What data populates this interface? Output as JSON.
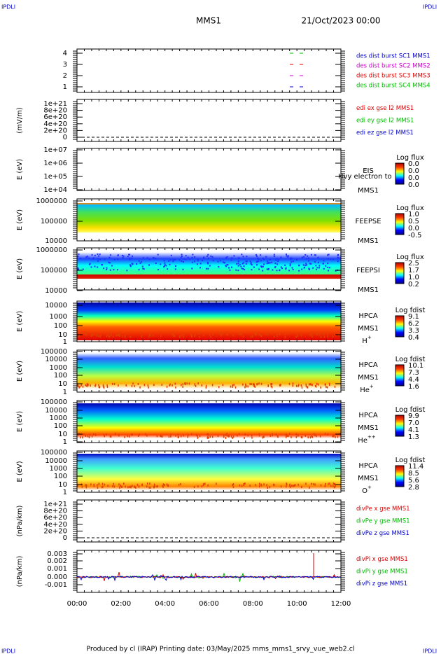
{
  "header": {
    "corner": "IPDLI",
    "title": "MMS1",
    "date": "21/Oct/2023 00:00"
  },
  "footer": {
    "text": "Produced by cl (IRAP)   Printing date: 03/May/2025   mms_mms1_srvy_vue_web2.cl",
    "corner": "IPDLI"
  },
  "xticks": [
    "00:00",
    "02:00",
    "04:00",
    "06:00",
    "08:00",
    "10:00",
    "12:00"
  ],
  "panels": [
    {
      "ylabel": "",
      "yticks": [
        "4",
        "3",
        "2",
        "1"
      ],
      "legend": [
        {
          "text": "des dist burst SC1 MMS1",
          "color": "#0000cc"
        },
        {
          "text": "des dist burst SC2 MMS2",
          "color": "#cc00cc"
        },
        {
          "text": "des dist burst SC3 MMS3",
          "color": "#dd0000"
        },
        {
          "text": "des dist burst SC4 MMS4",
          "color": "#00bb00"
        }
      ]
    },
    {
      "ylabel": "(mV/m)",
      "yticks": [
        "1e+21",
        "8e+20",
        "6e+20",
        "4e+20",
        "2e+20",
        "0"
      ],
      "legend": [
        {
          "text": "edi ex gse l2 MMS1",
          "color": "#dd0000"
        },
        {
          "text": "edi ey gse l2 MMS1",
          "color": "#00bb00"
        },
        {
          "text": "edi ez gse l2 MMS1",
          "color": "#0000cc"
        }
      ]
    },
    {
      "ylabel": "E (eV)",
      "yticks": [
        "1e+07",
        "1e+06",
        "1e+05",
        "1e+04"
      ],
      "side": [
        "EIS",
        "MMS1"
      ],
      "note": "Hvy electron to",
      "cbar": {
        "title": "Log flux",
        "ticks": [
          "0.0",
          "0.0",
          "0.0",
          "0.0"
        ]
      }
    },
    {
      "ylabel": "E (eV)",
      "yticks": [
        "1000000",
        "100000",
        "10000"
      ],
      "side": [
        "FEEPSE",
        "MMS1"
      ],
      "cbar": {
        "title": "Log flux",
        "ticks": [
          "1.0",
          "0.5",
          "0.0",
          "-0.5"
        ]
      }
    },
    {
      "ylabel": "E (eV)",
      "yticks": [
        "1000000",
        "100000",
        "10000"
      ],
      "side": [
        "FEEPSI",
        "MMS1"
      ],
      "cbar": {
        "title": "Log flux",
        "ticks": [
          "2.5",
          "1.7",
          "1.0",
          "0.2"
        ]
      }
    },
    {
      "ylabel": "E (eV)",
      "yticks": [
        "10000",
        "1000",
        "100",
        "10",
        "1"
      ],
      "side": [
        "HPCA",
        "MMS1"
      ],
      "species": {
        "base": "H",
        "sup": "+"
      },
      "cbar": {
        "title": "Log fdist",
        "ticks": [
          "9.1",
          "6.2",
          "3.3",
          "0.4"
        ]
      }
    },
    {
      "ylabel": "E (eV)",
      "yticks": [
        "100000",
        "10000",
        "1000",
        "100",
        "10",
        "1"
      ],
      "side": [
        "HPCA",
        "MMS1"
      ],
      "species": {
        "base": "He",
        "sup": "+"
      },
      "cbar": {
        "title": "Log fdist",
        "ticks": [
          "10.1",
          "7.3",
          "4.4",
          "1.6"
        ]
      }
    },
    {
      "ylabel": "E (eV)",
      "yticks": [
        "100000",
        "10000",
        "1000",
        "100",
        "10",
        "1"
      ],
      "side": [
        "HPCA",
        "MMS1"
      ],
      "species": {
        "base": "He",
        "sup": "++"
      },
      "cbar": {
        "title": "Log fdist",
        "ticks": [
          "9.9",
          "7.0",
          "4.1",
          "1.3"
        ]
      }
    },
    {
      "ylabel": "E (eV)",
      "yticks": [
        "100000",
        "10000",
        "1000",
        "100",
        "10",
        "1"
      ],
      "side": [
        "HPCA",
        "MMS1"
      ],
      "species": {
        "base": "O",
        "sup": "+"
      },
      "cbar": {
        "title": "Log fdist",
        "ticks": [
          "11.4",
          "8.5",
          "5.6",
          "2.8"
        ]
      }
    },
    {
      "ylabel": "(nPa/km)",
      "yticks": [
        "1e+21",
        "8e+20",
        "6e+20",
        "4e+20",
        "2e+20",
        "0"
      ],
      "legend": [
        {
          "text": "divPe x gse MMS1",
          "color": "#dd0000"
        },
        {
          "text": "divPe y gse MMS1",
          "color": "#00bb00"
        },
        {
          "text": "divPe z gse MMS1",
          "color": "#0000cc"
        }
      ]
    },
    {
      "ylabel": "(nPa/km)",
      "yticks": [
        "0.003",
        "0.002",
        "0.001",
        "0.000",
        "-0.001"
      ],
      "legend": [
        {
          "text": "divPi x gse MMS1",
          "color": "#dd0000"
        },
        {
          "text": "divPi y gse MMS1",
          "color": "#00bb00"
        },
        {
          "text": "divPi z gse MMS1",
          "color": "#0000cc"
        }
      ]
    }
  ]
}
